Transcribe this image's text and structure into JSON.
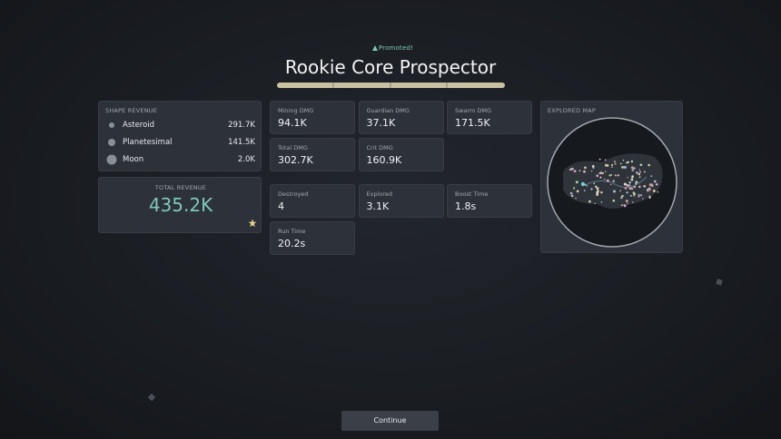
{
  "header": {
    "status": "Promoted!",
    "title": "Rookie Core Prospector"
  },
  "shape_revenue": {
    "title": "SHAPE REVENUE",
    "rows": [
      {
        "label": "Asteroid",
        "value": "291.7K"
      },
      {
        "label": "Planetesimal",
        "value": "141.5K"
      },
      {
        "label": "Moon",
        "value": "2.0K"
      }
    ]
  },
  "total_revenue": {
    "title": "TOTAL REVENUE",
    "value": "435.2K"
  },
  "stat_groups": [
    [
      {
        "label": "Mining DMG",
        "value": "94.1K"
      },
      {
        "label": "Guardian DMG",
        "value": "37.1K"
      },
      {
        "label": "Swarm DMG",
        "value": "171.5K"
      },
      {
        "label": "Total DMG",
        "value": "302.7K"
      },
      {
        "label": "Crit DMG",
        "value": "160.9K"
      }
    ],
    [
      {
        "label": "Destroyed",
        "value": "4"
      },
      {
        "label": "Explored",
        "value": "3.1K"
      },
      {
        "label": "Boost Time",
        "value": "1.8s"
      },
      {
        "label": "Run Time",
        "value": "20.2s"
      }
    ]
  ],
  "explored_map": {
    "title": "EXPLORED MAP"
  },
  "button": {
    "label": "Continue"
  }
}
